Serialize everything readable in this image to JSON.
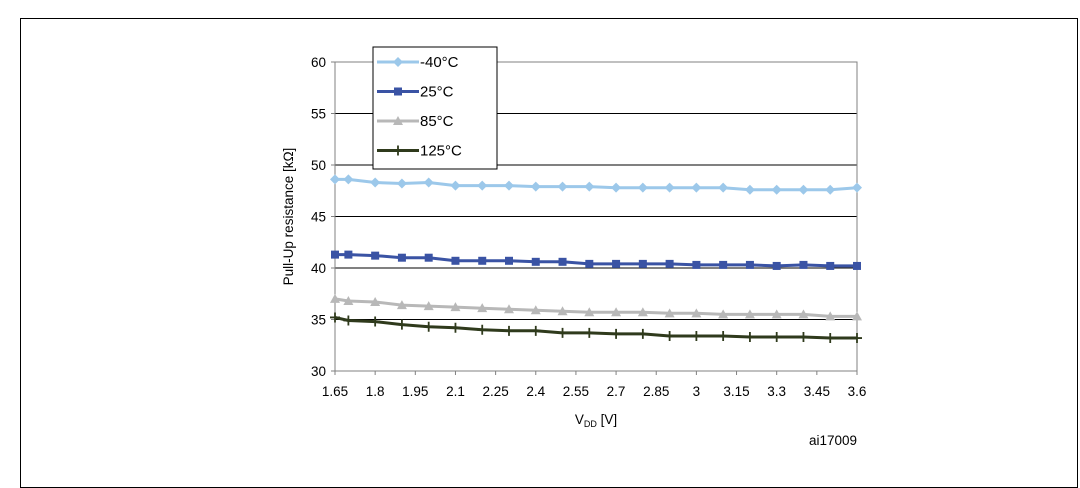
{
  "chart_data": {
    "type": "line",
    "title": "",
    "xlabel_main": "V",
    "xlabel_sub": "DD",
    "xlabel_unit": " [V]",
    "ylabel": "Pull-Up resistance [kΩ]",
    "ylim": [
      30,
      60
    ],
    "yticks": [
      "30",
      "35",
      "40",
      "45",
      "50",
      "55",
      "60"
    ],
    "xticks": [
      "1.65",
      "1.8",
      "1.95",
      "2.1",
      "2.25",
      "2.4",
      "2.55",
      "2.7",
      "2.85",
      "3",
      "3.15",
      "3.3",
      "3.45",
      "3.6"
    ],
    "x": [
      1.65,
      1.7,
      1.8,
      1.9,
      2.0,
      2.1,
      2.2,
      2.3,
      2.4,
      2.5,
      2.6,
      2.7,
      2.8,
      2.9,
      3.0,
      3.1,
      3.2,
      3.3,
      3.4,
      3.5,
      3.6
    ],
    "legend_position": "top-left",
    "grid": "horizontal",
    "figure_id": "ai17009",
    "series": [
      {
        "name": "-40°C",
        "color": "#9cc8ea",
        "marker": "diamond",
        "values": [
          48.6,
          48.6,
          48.3,
          48.2,
          48.3,
          48.0,
          48.0,
          48.0,
          47.9,
          47.9,
          47.9,
          47.8,
          47.8,
          47.8,
          47.8,
          47.8,
          47.6,
          47.6,
          47.6,
          47.6,
          47.8
        ]
      },
      {
        "name": "25°C",
        "color": "#3a53a4",
        "marker": "square",
        "values": [
          41.3,
          41.3,
          41.2,
          41.0,
          41.0,
          40.7,
          40.7,
          40.7,
          40.6,
          40.6,
          40.4,
          40.4,
          40.4,
          40.4,
          40.3,
          40.3,
          40.3,
          40.2,
          40.3,
          40.2,
          40.2
        ]
      },
      {
        "name": "85°C",
        "color": "#b8b8b8",
        "marker": "triangle",
        "values": [
          37.0,
          36.8,
          36.7,
          36.4,
          36.3,
          36.2,
          36.1,
          36.0,
          35.9,
          35.8,
          35.7,
          35.7,
          35.7,
          35.6,
          35.6,
          35.5,
          35.5,
          35.5,
          35.5,
          35.3,
          35.3
        ]
      },
      {
        "name": "125°C",
        "color": "#2f3a1c",
        "marker": "plus",
        "values": [
          35.2,
          34.9,
          34.8,
          34.5,
          34.3,
          34.2,
          34.0,
          33.9,
          33.9,
          33.7,
          33.7,
          33.6,
          33.6,
          33.4,
          33.4,
          33.4,
          33.3,
          33.3,
          33.3,
          33.2,
          33.2
        ]
      }
    ]
  }
}
